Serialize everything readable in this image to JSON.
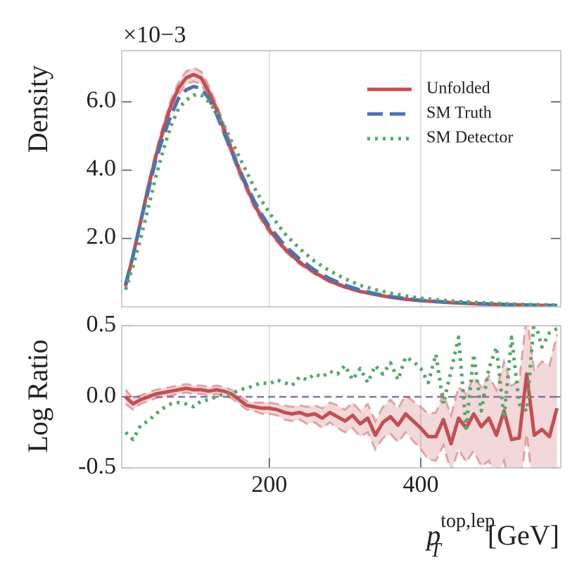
{
  "chart_data": [
    {
      "type": "line",
      "ylabel": "Density",
      "offset_label": "×10−3",
      "legend": "upper right",
      "grid": true,
      "xlim": [
        5,
        585
      ],
      "ylim": [
        0,
        7.5
      ],
      "yticks": [
        {
          "value": 2,
          "label": "2.0"
        },
        {
          "value": 4,
          "label": "4.0"
        },
        {
          "value": 6,
          "label": "6.0"
        }
      ],
      "x": [
        10,
        20,
        30,
        40,
        50,
        60,
        70,
        80,
        90,
        100,
        110,
        120,
        130,
        140,
        150,
        160,
        170,
        180,
        190,
        200,
        220,
        240,
        260,
        280,
        300,
        320,
        340,
        360,
        380,
        400,
        440,
        480,
        520,
        560,
        580
      ],
      "series": [
        {
          "name": "Unfolded",
          "color": "#c44e52",
          "style": "solid",
          "values": [
            0.6,
            1.5,
            2.5,
            3.5,
            4.4,
            5.2,
            5.9,
            6.4,
            6.7,
            6.8,
            6.7,
            6.3,
            5.8,
            5.2,
            4.6,
            4.0,
            3.5,
            3.0,
            2.6,
            2.25,
            1.7,
            1.3,
            1.0,
            0.75,
            0.58,
            0.45,
            0.36,
            0.28,
            0.22,
            0.18,
            0.12,
            0.08,
            0.06,
            0.04,
            0.03
          ],
          "errors": [
            0.05,
            0.08,
            0.1,
            0.12,
            0.14,
            0.16,
            0.17,
            0.18,
            0.19,
            0.2,
            0.19,
            0.18,
            0.17,
            0.16,
            0.15,
            0.14,
            0.12,
            0.11,
            0.1,
            0.09,
            0.07,
            0.06,
            0.05,
            0.04,
            0.03,
            0.03,
            0.02,
            0.02,
            0.02,
            0.02,
            0.01,
            0.01,
            0.01,
            0.01,
            0.01
          ]
        },
        {
          "name": "SM Truth",
          "color": "#4c72b0",
          "style": "dashed",
          "values": [
            0.65,
            1.5,
            2.5,
            3.4,
            4.3,
            5.0,
            5.6,
            6.1,
            6.35,
            6.45,
            6.4,
            6.1,
            5.65,
            5.1,
            4.55,
            4.05,
            3.55,
            3.1,
            2.7,
            2.35,
            1.8,
            1.4,
            1.07,
            0.82,
            0.63,
            0.49,
            0.38,
            0.3,
            0.24,
            0.19,
            0.13,
            0.09,
            0.06,
            0.045,
            0.035
          ]
        },
        {
          "name": "SM Detector",
          "color": "#55a868",
          "style": "dotted",
          "values": [
            0.5,
            1.2,
            2.0,
            2.9,
            3.8,
            4.6,
            5.3,
            5.8,
            6.05,
            6.2,
            6.2,
            6.0,
            5.7,
            5.3,
            4.85,
            4.4,
            3.95,
            3.5,
            3.1,
            2.75,
            2.15,
            1.7,
            1.33,
            1.05,
            0.82,
            0.63,
            0.5,
            0.4,
            0.32,
            0.25,
            0.17,
            0.12,
            0.08,
            0.06,
            0.05
          ]
        }
      ]
    },
    {
      "type": "line",
      "ylabel": "Log Ratio",
      "xlabel": {
        "base": "p",
        "sup": "top,lep",
        "sub": "T",
        "unit": "[GeV]"
      },
      "grid": true,
      "xlim": [
        5,
        585
      ],
      "ylim": [
        -0.5,
        0.5
      ],
      "xticks": [
        200,
        400
      ],
      "yticks": [
        {
          "value": -0.5,
          "label": "-0.5"
        },
        {
          "value": 0,
          "label": "0.0"
        },
        {
          "value": 0.5,
          "label": "0.5"
        }
      ],
      "reference": {
        "value": 0,
        "color": "#8172b2"
      },
      "x": [
        10,
        20,
        30,
        40,
        50,
        60,
        70,
        80,
        90,
        100,
        110,
        120,
        130,
        140,
        150,
        160,
        170,
        180,
        190,
        200,
        210,
        220,
        230,
        240,
        250,
        260,
        270,
        280,
        290,
        300,
        310,
        320,
        330,
        340,
        350,
        360,
        370,
        380,
        390,
        400,
        410,
        420,
        430,
        440,
        450,
        460,
        470,
        480,
        490,
        500,
        510,
        520,
        530,
        540,
        550,
        560,
        570,
        580
      ],
      "series": [
        {
          "name": "Unfolded",
          "color": "#c44e52",
          "style": "solid",
          "values": [
            0.0,
            -0.05,
            -0.02,
            0.0,
            0.02,
            0.03,
            0.04,
            0.05,
            0.06,
            0.05,
            0.05,
            0.04,
            0.05,
            0.04,
            0.02,
            -0.02,
            -0.06,
            -0.07,
            -0.08,
            -0.08,
            -0.09,
            -0.11,
            -0.12,
            -0.11,
            -0.13,
            -0.12,
            -0.15,
            -0.11,
            -0.14,
            -0.17,
            -0.13,
            -0.19,
            -0.15,
            -0.27,
            -0.18,
            -0.14,
            -0.2,
            -0.12,
            -0.17,
            -0.22,
            -0.28,
            -0.28,
            -0.16,
            -0.33,
            -0.15,
            -0.22,
            -0.12,
            -0.21,
            -0.15,
            -0.27,
            -0.1,
            -0.3,
            -0.29,
            0.16,
            -0.27,
            -0.23,
            -0.28,
            -0.08
          ],
          "errors": [
            0.05,
            0.04,
            0.03,
            0.03,
            0.03,
            0.03,
            0.03,
            0.03,
            0.03,
            0.03,
            0.03,
            0.03,
            0.03,
            0.03,
            0.03,
            0.03,
            0.03,
            0.03,
            0.04,
            0.04,
            0.04,
            0.05,
            0.05,
            0.05,
            0.06,
            0.06,
            0.07,
            0.07,
            0.08,
            0.08,
            0.09,
            0.09,
            0.1,
            0.1,
            0.11,
            0.12,
            0.12,
            0.13,
            0.14,
            0.15,
            0.16,
            0.17,
            0.18,
            0.2,
            0.22,
            0.24,
            0.26,
            0.28,
            0.3,
            0.32,
            0.35,
            0.38,
            0.4,
            0.42,
            0.45,
            0.48,
            0.5,
            0.52
          ]
        },
        {
          "name": "SM Detector",
          "color": "#55a868",
          "style": "dotted",
          "values": [
            -0.25,
            -0.3,
            -0.2,
            -0.17,
            -0.12,
            -0.08,
            -0.05,
            -0.04,
            -0.05,
            -0.07,
            -0.03,
            -0.02,
            0.0,
            0.02,
            0.02,
            0.05,
            0.06,
            0.08,
            0.1,
            0.09,
            0.12,
            0.1,
            0.08,
            0.14,
            0.12,
            0.16,
            0.14,
            0.18,
            0.16,
            0.22,
            0.12,
            0.2,
            0.1,
            0.22,
            0.16,
            0.24,
            0.12,
            0.28,
            0.25,
            0.2,
            0.1,
            0.3,
            -0.05,
            0.18,
            0.42,
            -0.22,
            0.3,
            -0.1,
            0.2,
            0.35,
            -0.15,
            0.42,
            -0.05,
            -0.1,
            0.55,
            0.35,
            0.45,
            0.48
          ]
        }
      ]
    }
  ]
}
